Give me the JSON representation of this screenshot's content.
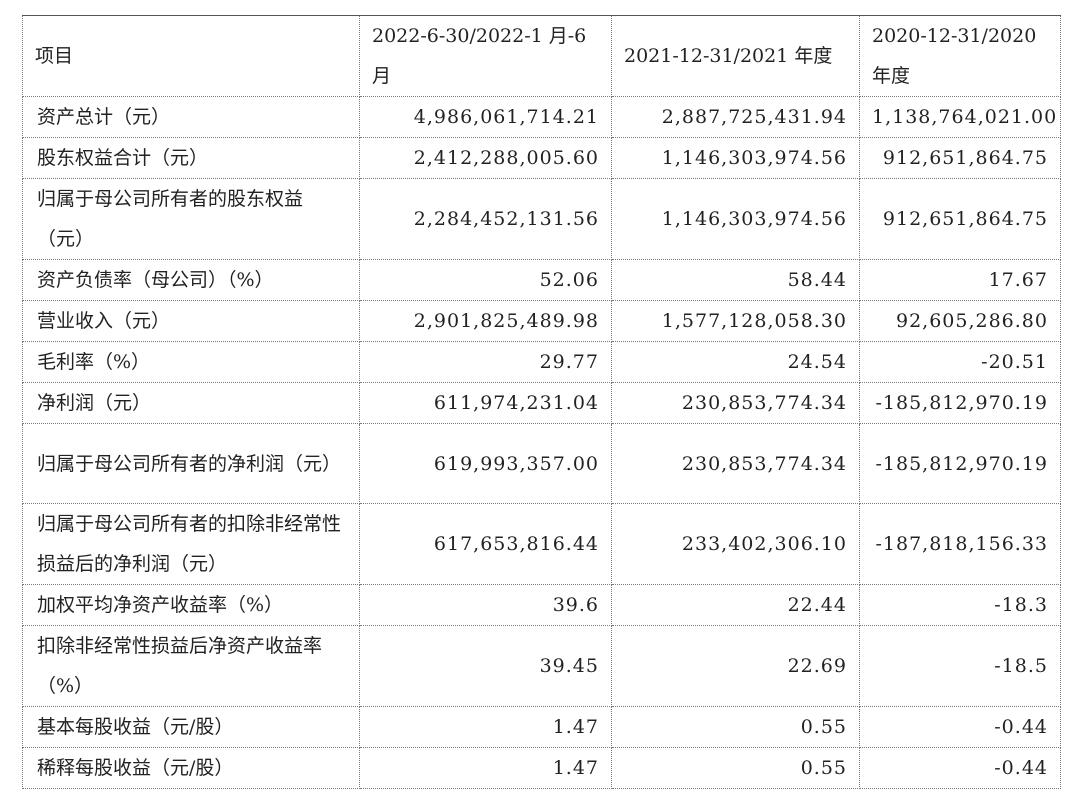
{
  "table": {
    "headers": [
      "项目",
      "2022-6-30/2022-1 月-6 月",
      "2021-12-31/2021 年度",
      "2020-12-31/2020 年度"
    ],
    "rows": [
      {
        "label": "资产总计（元）",
        "v1": "4,986,061,714.21",
        "v2": "2,887,725,431.94",
        "v3": "1,138,764,021.00"
      },
      {
        "label": "股东权益合计（元）",
        "v1": "2,412,288,005.60",
        "v2": "1,146,303,974.56",
        "v3": "912,651,864.75"
      },
      {
        "label": "归属于母公司所有者的股东权益（元）",
        "v1": "2,284,452,131.56",
        "v2": "1,146,303,974.56",
        "v3": "912,651,864.75"
      },
      {
        "label": "资产负债率（母公司）（%）",
        "v1": "52.06",
        "v2": "58.44",
        "v3": "17.67"
      },
      {
        "label": "营业收入（元）",
        "v1": "2,901,825,489.98",
        "v2": "1,577,128,058.30",
        "v3": "92,605,286.80"
      },
      {
        "label": "毛利率（%）",
        "v1": "29.77",
        "v2": "24.54",
        "v3": "-20.51"
      },
      {
        "label": "净利润（元）",
        "v1": "611,974,231.04",
        "v2": "230,853,774.34",
        "v3": "-185,812,970.19"
      },
      {
        "label": "归属于母公司所有者的净利润（元）",
        "v1": "619,993,357.00",
        "v2": "230,853,774.34",
        "v3": "-185,812,970.19"
      },
      {
        "label": "归属于母公司所有者的扣除非经常性损益后的净利润（元）",
        "v1": "617,653,816.44",
        "v2": "233,402,306.10",
        "v3": "-187,818,156.33"
      },
      {
        "label": "加权平均净资产收益率（%）",
        "v1": "39.6",
        "v2": "22.44",
        "v3": "-18.3"
      },
      {
        "label": "扣除非经常性损益后净资产收益率（%）",
        "v1": "39.45",
        "v2": "22.69",
        "v3": "-18.5"
      },
      {
        "label": "基本每股收益（元/股）",
        "v1": "1.47",
        "v2": "0.55",
        "v3": "-0.44"
      },
      {
        "label": "稀释每股收益（元/股）",
        "v1": "1.47",
        "v2": "0.55",
        "v3": "-0.44"
      }
    ]
  }
}
